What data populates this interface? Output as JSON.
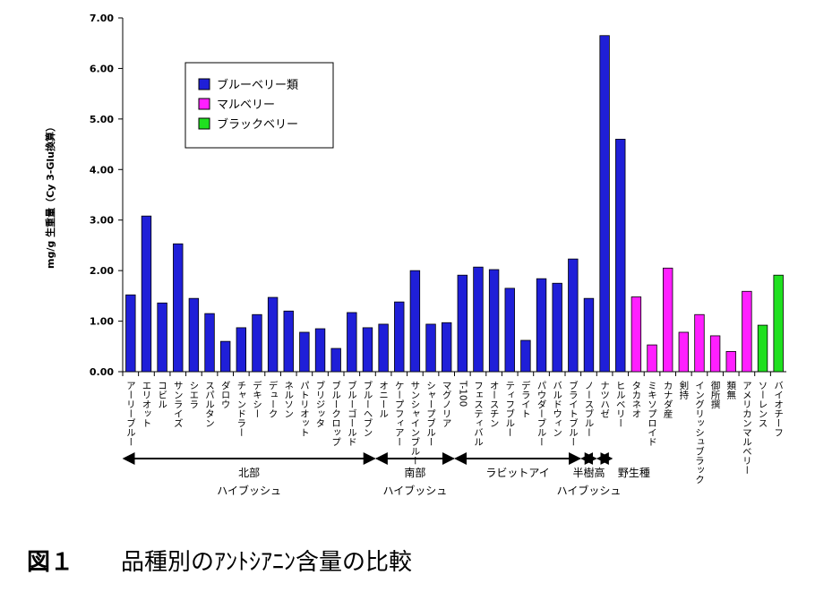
{
  "chart_data": {
    "type": "bar",
    "ylabel": "mg/g 生重量（Cy 3-Glu換算）",
    "caption_number": "図１",
    "caption": "品種別のｱﾝﾄｼｱﾆﾝ含量の比較",
    "categories": [
      "アーリーブルー",
      "エリオット",
      "コビル",
      "サンライズ",
      "シエラ",
      "スパルタン",
      "ダロウ",
      "チャンドラー",
      "デキシー",
      "デューク",
      "ネルソン",
      "パトリオット",
      "ブリジッタ",
      "ブルークロップ",
      "ブルーゴールド",
      "ブルーヘブン",
      "オニール",
      "ケープフィアー",
      "サンシャインブルー",
      "シャープブルー",
      "マグノリア",
      "T-100",
      "フェスティバル",
      "オースチン",
      "ティフブルー",
      "デライト",
      "パウダーブルー",
      "バルドウィン",
      "ブライトブルー",
      "ノースブルー",
      "ナツハゼ",
      "ヒルベリー",
      "タカネオ",
      "ミキソプロイド",
      "カナダ産",
      "剣持",
      "イングリッシュブラック",
      "御所撰",
      "類無",
      "アメリカンマルベリー",
      "ソーレンス",
      "バイオチーフ"
    ],
    "series": [
      {
        "name": "ブルーベリー類",
        "color": "#1f1fd8",
        "values": [
          1.52,
          3.08,
          1.36,
          2.53,
          1.45,
          1.15,
          0.6,
          0.87,
          1.13,
          1.47,
          1.2,
          0.78,
          0.85,
          0.46,
          1.17,
          0.87,
          0.94,
          1.38,
          2.0,
          0.94,
          0.97,
          1.91,
          2.07,
          2.02,
          1.65,
          0.62,
          1.84,
          1.75,
          2.23,
          1.45,
          6.65,
          4.6,
          null,
          null,
          null,
          null,
          null,
          null,
          null,
          null,
          null,
          null
        ]
      },
      {
        "name": "マルベリー",
        "color": "#ff1fff",
        "values": [
          null,
          null,
          null,
          null,
          null,
          null,
          null,
          null,
          null,
          null,
          null,
          null,
          null,
          null,
          null,
          null,
          null,
          null,
          null,
          null,
          null,
          null,
          null,
          null,
          null,
          null,
          null,
          null,
          null,
          null,
          null,
          null,
          1.48,
          0.53,
          2.05,
          0.78,
          1.13,
          0.71,
          0.4,
          1.59,
          null,
          null
        ]
      },
      {
        "name": "ブラックベリー",
        "color": "#1fe01f",
        "values": [
          null,
          null,
          null,
          null,
          null,
          null,
          null,
          null,
          null,
          null,
          null,
          null,
          null,
          null,
          null,
          null,
          null,
          null,
          null,
          null,
          null,
          null,
          null,
          null,
          null,
          null,
          null,
          null,
          null,
          null,
          null,
          null,
          null,
          null,
          null,
          null,
          null,
          null,
          null,
          null,
          0.92,
          1.91
        ]
      }
    ],
    "groups": [
      {
        "labels": [
          "北部",
          "ハイブッシュ"
        ],
        "start": 0,
        "end": 15
      },
      {
        "labels": [
          "南部",
          "ハイブッシュ"
        ],
        "start": 16,
        "end": 20
      },
      {
        "labels": [
          "ラビットアイ"
        ],
        "start": 21,
        "end": 28
      },
      {
        "labels": [
          "半樹高",
          "ハイブッシュ"
        ],
        "start": 29,
        "end": 29
      },
      {
        "labels": [
          "野生種"
        ],
        "start": 30,
        "end": 30
      }
    ],
    "ylim": [
      0,
      7
    ],
    "yticks": [
      {
        "value": 0,
        "label": "0.00"
      },
      {
        "value": 1,
        "label": "1.00"
      },
      {
        "value": 2,
        "label": "2.00"
      },
      {
        "value": 3,
        "label": "3.00"
      },
      {
        "value": 4,
        "label": "4.00"
      },
      {
        "value": 5,
        "label": "5.00"
      },
      {
        "value": 6,
        "label": "6.00"
      },
      {
        "value": 7,
        "label": "7.00"
      }
    ]
  }
}
